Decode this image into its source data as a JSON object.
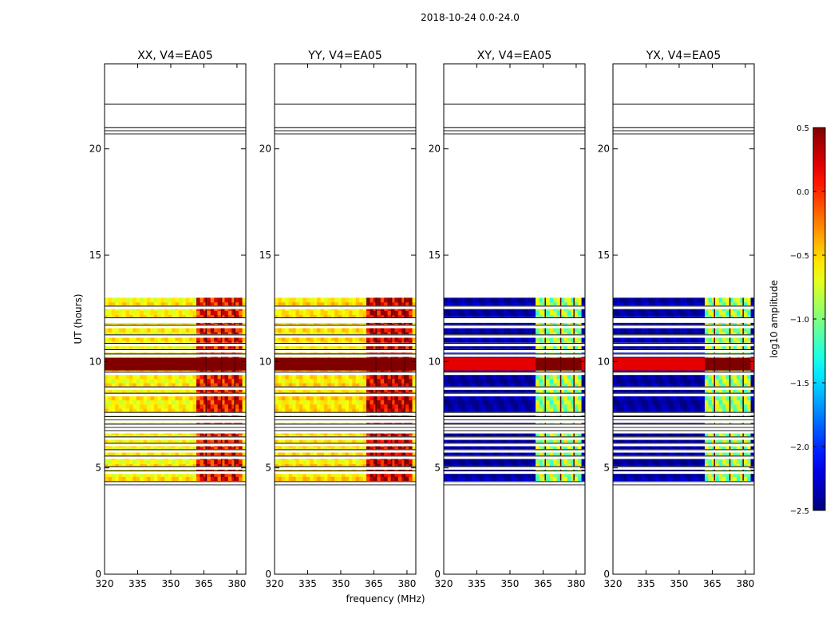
{
  "chart_data": {
    "type": "heatmap",
    "suptitle": "2018-10-24 0.0-24.0",
    "xlabel": "frequency (MHz)",
    "ylabel": "UT (hours)",
    "xlim": [
      320,
      384
    ],
    "ylim": [
      0,
      24
    ],
    "xticks": [
      320,
      335,
      350,
      365,
      380
    ],
    "yticks": [
      0,
      5,
      10,
      15,
      20
    ],
    "data_time_range": [
      4.4,
      13.0
    ],
    "rfi_band_mhz": [
      361,
      381
    ],
    "flagged_times": [
      4.15,
      4.3,
      4.8,
      5.0,
      5.5,
      5.8,
      6.1,
      6.4,
      6.7,
      6.85,
      7.0,
      7.2,
      7.35,
      7.55,
      8.45,
      8.75,
      9.45,
      10.3,
      10.5,
      10.8,
      11.2,
      11.65,
      11.9,
      12.0,
      12.55,
      20.65,
      20.8,
      20.95,
      22.05
    ],
    "panels": [
      {
        "title": "XX, V4=EA05",
        "baseline_level": -0.6,
        "band_level": 0.1
      },
      {
        "title": "YY, V4=EA05",
        "baseline_level": -0.55,
        "band_level": 0.25
      },
      {
        "title": "XY, V4=EA05",
        "baseline_level": -2.4,
        "band_level": -0.9
      },
      {
        "title": "YX, V4=EA05",
        "baseline_level": -2.4,
        "band_level": -0.9
      }
    ],
    "colorbar": {
      "label": "log10 amplitude",
      "colormap": "jet",
      "range": [
        -2.5,
        0.5
      ],
      "ticks": [
        "0.5",
        "0.0",
        "−0.5",
        "−1.0",
        "−1.5",
        "−2.0",
        "−2.5"
      ],
      "tick_values": [
        0.5,
        0.0,
        -0.5,
        -1.0,
        -1.5,
        -2.0,
        -2.5
      ]
    }
  }
}
